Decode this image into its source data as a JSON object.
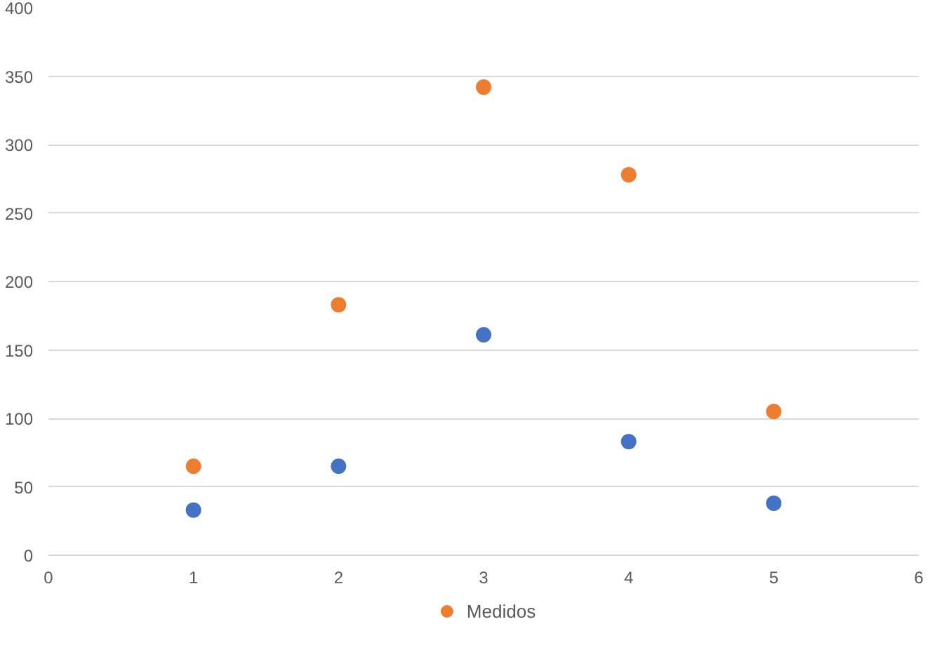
{
  "chart_data": {
    "type": "scatter",
    "x": [
      1,
      2,
      3,
      4,
      5
    ],
    "series": [
      {
        "color": "#4472c4",
        "values": [
          33,
          65,
          161,
          83,
          38
        ]
      },
      {
        "name": "Medidos",
        "color": "#ed7d31",
        "values": [
          65,
          183,
          342,
          278,
          105
        ]
      }
    ],
    "xlim": [
      0,
      6
    ],
    "xticks": [
      0,
      1,
      2,
      3,
      4,
      5,
      6
    ],
    "ylim": [
      0,
      400
    ],
    "yticks": [
      0,
      50,
      100,
      150,
      200,
      250,
      300,
      350,
      400
    ],
    "grid": "y",
    "legend": "bottom",
    "marker": "circle"
  }
}
